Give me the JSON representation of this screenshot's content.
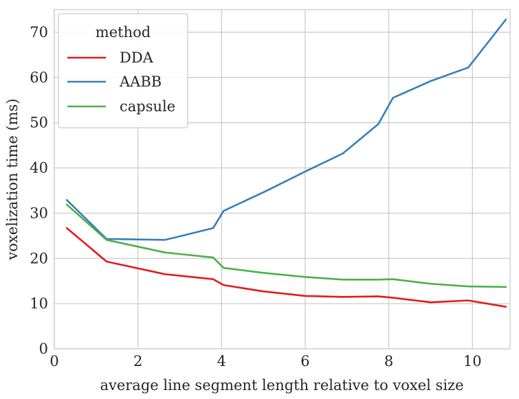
{
  "chart_data": {
    "type": "line",
    "title": "",
    "xlabel": "average line segment length relative to voxel size",
    "ylabel": "voxelization time (ms)",
    "xlim": [
      0,
      10.9
    ],
    "ylim": [
      0,
      75
    ],
    "xticks": [
      0,
      2,
      4,
      6,
      8,
      10
    ],
    "yticks": [
      0,
      10,
      20,
      30,
      40,
      50,
      60,
      70
    ],
    "grid": true,
    "legend": {
      "title": "method",
      "position": "top-left"
    },
    "series": [
      {
        "name": "DDA",
        "color": "#e31a1c",
        "x": [
          0.3,
          1.25,
          2.65,
          3.8,
          4.05,
          5.0,
          6.0,
          6.9,
          7.75,
          8.1,
          9.0,
          9.9,
          10.8
        ],
        "y": [
          26.7,
          19.3,
          16.5,
          15.4,
          14.1,
          12.7,
          11.7,
          11.5,
          11.6,
          11.3,
          10.3,
          10.7,
          9.3
        ]
      },
      {
        "name": "AABB",
        "color": "#377eb8",
        "x": [
          0.3,
          1.25,
          2.65,
          3.8,
          4.05,
          5.0,
          6.0,
          6.9,
          7.75,
          8.1,
          9.0,
          9.9,
          10.8
        ],
        "y": [
          32.9,
          24.3,
          24.1,
          26.7,
          30.5,
          34.6,
          39.2,
          43.2,
          49.7,
          55.5,
          59.2,
          62.2,
          72.8
        ]
      },
      {
        "name": "capsule",
        "color": "#4daf4a",
        "x": [
          0.3,
          1.25,
          2.65,
          3.8,
          4.05,
          5.0,
          6.0,
          6.9,
          7.75,
          8.1,
          9.0,
          9.9,
          10.8
        ],
        "y": [
          31.9,
          24.1,
          21.3,
          20.2,
          17.9,
          16.8,
          15.9,
          15.3,
          15.3,
          15.4,
          14.4,
          13.8,
          13.7
        ]
      }
    ]
  }
}
